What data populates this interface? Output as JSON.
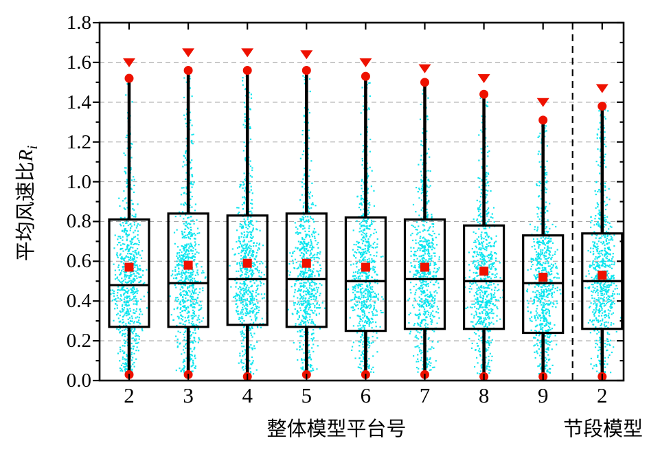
{
  "figure": {
    "background": "#ffffff"
  },
  "chart_data": {
    "type": "box",
    "title": "",
    "ylabel": {
      "text": "平均风速比",
      "variable": "R",
      "subscript": "i"
    },
    "xlabel_main": "整体模型平台号",
    "xlabel_segment": "节段模型",
    "ylim": [
      0.0,
      1.8
    ],
    "ytick_step": 0.2,
    "ytick_minor_step": 0.1,
    "ytick_labels": [
      "0.0",
      "0.2",
      "0.4",
      "0.6",
      "0.8",
      "1.0",
      "1.2",
      "1.4",
      "1.6",
      "1.8"
    ],
    "grid": {
      "horizontal": true,
      "style": "dashed",
      "color": "#a8a8a8",
      "at": [
        0.2,
        0.4,
        0.6,
        0.8,
        1.0,
        1.2,
        1.4,
        1.6
      ]
    },
    "categories": [
      "2",
      "3",
      "4",
      "5",
      "6",
      "7",
      "8",
      "9",
      "2"
    ],
    "group_separator": {
      "after_category_index": 7,
      "style": "vertical-dashed-line",
      "color": "#000000"
    },
    "series": [
      {
        "category": "2",
        "group": "整体模型平台号",
        "max": 1.6,
        "p99": 1.52,
        "q3": 0.81,
        "mean": 0.57,
        "median": 0.48,
        "q1": 0.27,
        "min": 0.03
      },
      {
        "category": "3",
        "group": "整体模型平台号",
        "max": 1.65,
        "p99": 1.56,
        "q3": 0.84,
        "mean": 0.58,
        "median": 0.49,
        "q1": 0.27,
        "min": 0.03
      },
      {
        "category": "4",
        "group": "整体模型平台号",
        "max": 1.65,
        "p99": 1.56,
        "q3": 0.83,
        "mean": 0.59,
        "median": 0.51,
        "q1": 0.28,
        "min": 0.02
      },
      {
        "category": "5",
        "group": "整体模型平台号",
        "max": 1.64,
        "p99": 1.56,
        "q3": 0.84,
        "mean": 0.59,
        "median": 0.51,
        "q1": 0.27,
        "min": 0.03
      },
      {
        "category": "6",
        "group": "整体模型平台号",
        "max": 1.6,
        "p99": 1.53,
        "q3": 0.82,
        "mean": 0.57,
        "median": 0.5,
        "q1": 0.25,
        "min": 0.03
      },
      {
        "category": "7",
        "group": "整体模型平台号",
        "max": 1.57,
        "p99": 1.5,
        "q3": 0.81,
        "mean": 0.57,
        "median": 0.51,
        "q1": 0.26,
        "min": 0.03
      },
      {
        "category": "8",
        "group": "整体模型平台号",
        "max": 1.52,
        "p99": 1.44,
        "q3": 0.78,
        "mean": 0.55,
        "median": 0.5,
        "q1": 0.26,
        "min": 0.02
      },
      {
        "category": "9",
        "group": "整体模型平台号",
        "max": 1.4,
        "p99": 1.31,
        "q3": 0.73,
        "mean": 0.52,
        "median": 0.49,
        "q1": 0.24,
        "min": 0.02
      },
      {
        "category": "2",
        "group": "节段模型",
        "max": 1.47,
        "p99": 1.38,
        "q3": 0.74,
        "mean": 0.53,
        "median": 0.5,
        "q1": 0.26,
        "min": 0.02
      }
    ],
    "markers": {
      "max": "filled-down-triangle",
      "p99": "filled-circle",
      "mean": "filled-square",
      "min": "filled-circle",
      "color": "#ee1100"
    },
    "box_style": {
      "line_color": "#000000",
      "fill": "none",
      "median_line": true
    },
    "scatter": {
      "note": "jittered raw data points behind each box",
      "color": "#00e4ee",
      "points_per_category": 720,
      "value_range_lower": 0.02,
      "value_range_upper": "p99"
    }
  }
}
